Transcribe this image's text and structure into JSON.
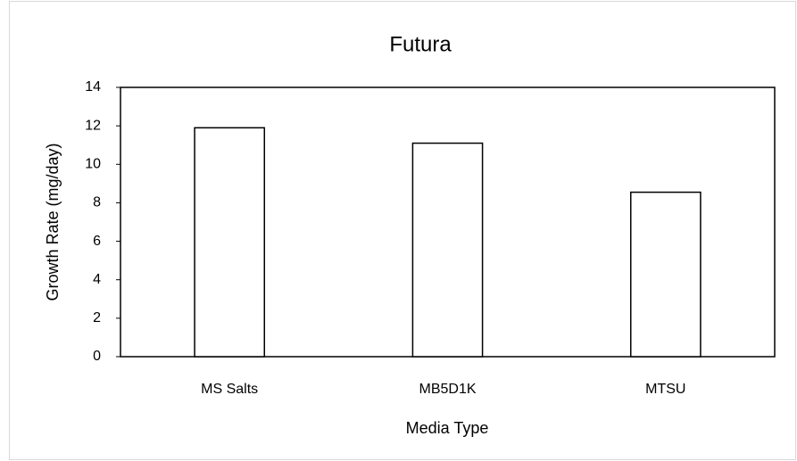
{
  "chart_data": {
    "type": "bar",
    "title": "Futura",
    "x_label": "Media Type",
    "y_label": "Growth Rate (mg/day)",
    "categories": [
      "MS Salts",
      "MB5D1K",
      "MTSU"
    ],
    "values": [
      11.9,
      11.1,
      8.55
    ],
    "color": "#ffffff",
    "edge_color": "#000000",
    "ylim": [
      0,
      14
    ],
    "yticks": [
      0,
      2,
      4,
      6,
      8,
      10,
      12,
      14
    ],
    "grid": false
  }
}
